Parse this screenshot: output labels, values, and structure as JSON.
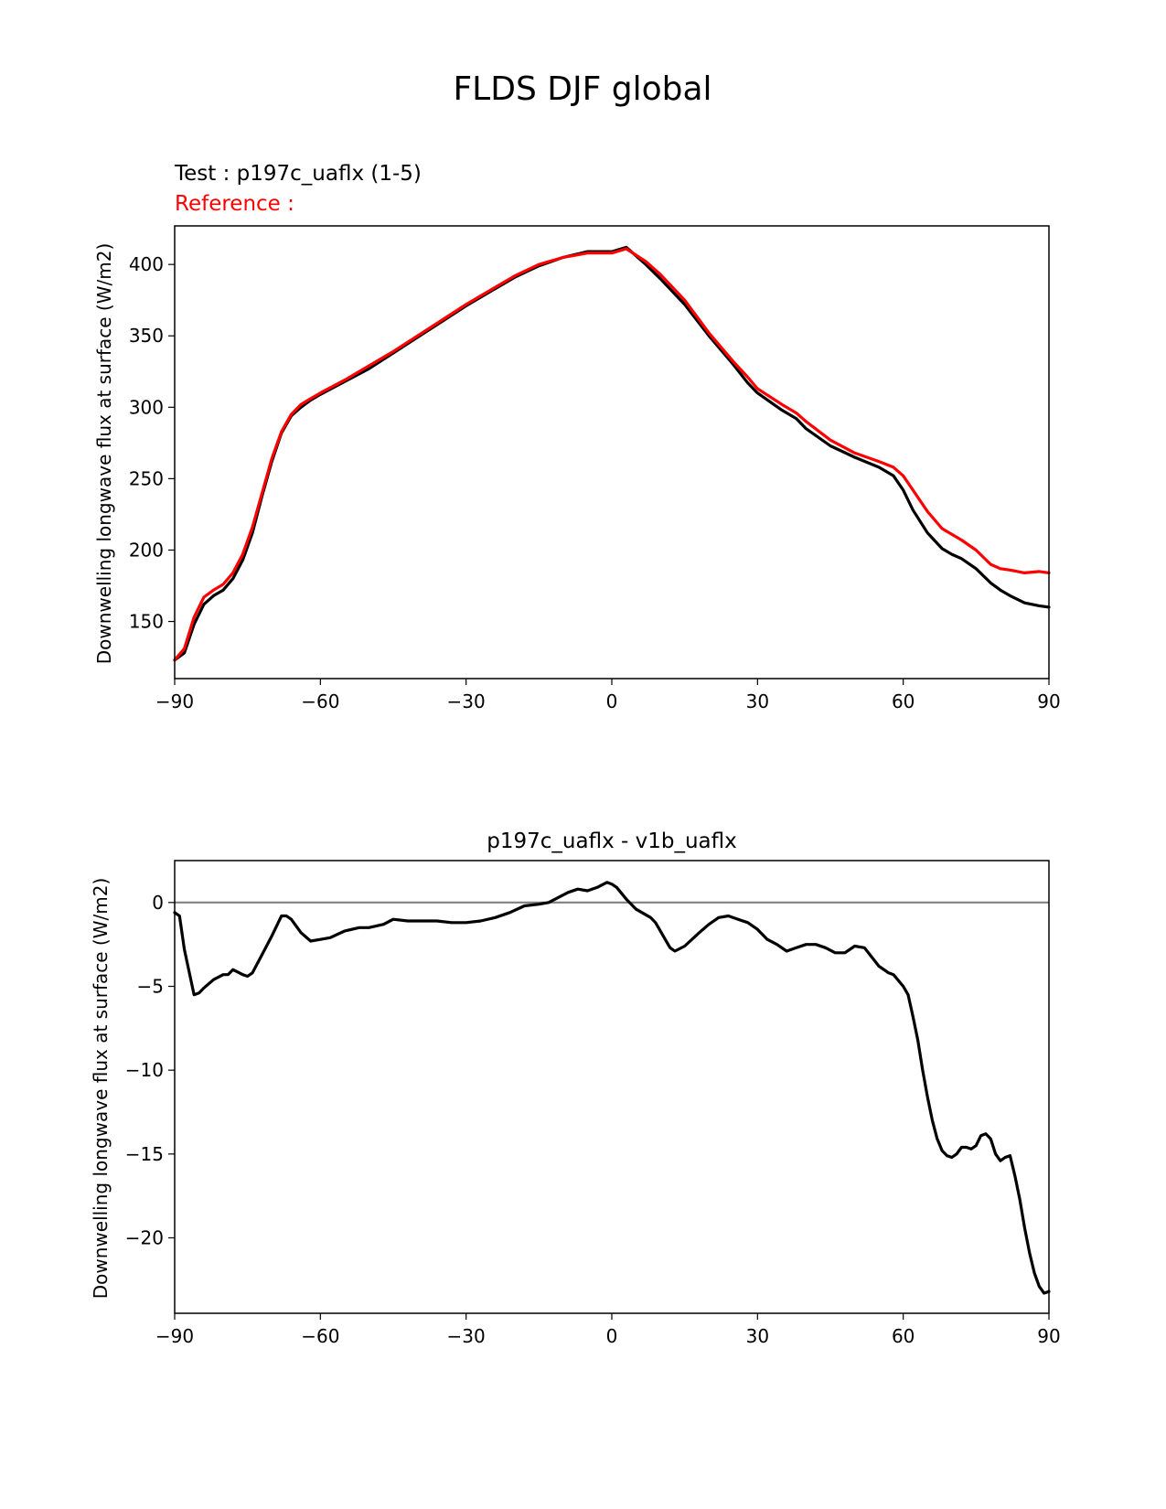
{
  "figure_title": "FLDS DJF global",
  "colors": {
    "test": "#000000",
    "reference": "#ff0000",
    "zero_line": "#808080",
    "axes": "#000000"
  },
  "chart_data": [
    {
      "type": "line",
      "panel": "top",
      "test_label": "Test : p197c_uaflx (1-5)",
      "reference_label": "Reference : ",
      "xlabel": "",
      "ylabel": "Downwelling longwave flux at surface (W/m2)",
      "xlim": [
        -90,
        90
      ],
      "ylim": [
        110,
        427
      ],
      "xticks": [
        -90,
        -60,
        -30,
        0,
        30,
        60,
        90
      ],
      "xtick_labels": [
        "−90",
        "−60",
        "−30",
        "0",
        "30",
        "60",
        "90"
      ],
      "yticks": [
        150,
        200,
        250,
        300,
        350,
        400
      ],
      "ytick_labels": [
        "150",
        "200",
        "250",
        "300",
        "350",
        "400"
      ],
      "x": [
        -90,
        -88,
        -86,
        -84,
        -82,
        -80,
        -78,
        -76,
        -74,
        -72,
        -70,
        -68,
        -66,
        -64,
        -62,
        -60,
        -55,
        -50,
        -45,
        -40,
        -35,
        -30,
        -25,
        -20,
        -15,
        -10,
        -5,
        0,
        3,
        7,
        10,
        15,
        20,
        25,
        28,
        30,
        35,
        38,
        40,
        45,
        50,
        55,
        58,
        60,
        62,
        65,
        68,
        70,
        72,
        75,
        78,
        80,
        82,
        85,
        88,
        90
      ],
      "series": [
        {
          "name": "test",
          "color": "#000000",
          "values": [
            123,
            128,
            148,
            162,
            168,
            172,
            180,
            193,
            212,
            238,
            262,
            282,
            294,
            300,
            305,
            309,
            318,
            327,
            338,
            349,
            360,
            371,
            381,
            391,
            399,
            405,
            409,
            409,
            412,
            400,
            390,
            372,
            350,
            330,
            317,
            310,
            298,
            292,
            285,
            273,
            265,
            258,
            252,
            242,
            228,
            212,
            201,
            197,
            194,
            187,
            177,
            172,
            168,
            163,
            161,
            160
          ]
        },
        {
          "name": "reference",
          "color": "#ff0000",
          "values": [
            123,
            131,
            153,
            167,
            172,
            176,
            184,
            197,
            216,
            240,
            264,
            283,
            295,
            302,
            306,
            310,
            319,
            329,
            339,
            350,
            361,
            372,
            382,
            392,
            400,
            405,
            408,
            408,
            411,
            402,
            393,
            375,
            352,
            332,
            321,
            313,
            302,
            296,
            290,
            277,
            268,
            262,
            258,
            252,
            242,
            227,
            215,
            211,
            207,
            200,
            190,
            187,
            186,
            184,
            185,
            184
          ]
        }
      ]
    },
    {
      "type": "line",
      "panel": "bottom",
      "title": "p197c_uaflx - v1b_uaflx",
      "xlabel": "",
      "ylabel": "Downwelling longwave flux at surface (W/m2)",
      "xlim": [
        -90,
        90
      ],
      "ylim": [
        -24.5,
        2.5
      ],
      "xticks": [
        -90,
        -60,
        -30,
        0,
        30,
        60,
        90
      ],
      "xtick_labels": [
        "−90",
        "−60",
        "−30",
        "0",
        "30",
        "60",
        "90"
      ],
      "yticks": [
        -20,
        -15,
        -10,
        -5,
        0
      ],
      "ytick_labels": [
        "−20",
        "−15",
        "−10",
        "−5",
        "0"
      ],
      "zero_line": 0,
      "x": [
        -90,
        -89,
        -88,
        -86,
        -85,
        -84,
        -82,
        -80,
        -79,
        -78,
        -76,
        -75,
        -74,
        -72,
        -70,
        -68,
        -67,
        -66,
        -64,
        -62,
        -60,
        -58,
        -55,
        -52,
        -50,
        -47,
        -45,
        -42,
        -39,
        -36,
        -33,
        -30,
        -27,
        -24,
        -21,
        -18,
        -15,
        -13,
        -11,
        -9,
        -7,
        -5,
        -3,
        -1,
        0,
        1,
        3,
        5,
        8,
        9,
        12,
        13,
        15,
        18,
        20,
        22,
        24,
        26,
        28,
        30,
        32,
        34,
        36,
        38,
        40,
        42,
        44,
        46,
        48,
        50,
        52,
        55,
        57,
        58,
        60,
        61,
        62,
        63,
        64,
        65,
        66,
        67,
        68,
        69,
        70,
        71,
        72,
        73,
        74,
        75,
        76,
        77,
        78,
        79,
        80,
        81,
        82,
        83,
        84,
        85,
        86,
        87,
        88,
        89,
        90
      ],
      "series": [
        {
          "name": "difference",
          "color": "#000000",
          "values": [
            -0.6,
            -0.8,
            -2.8,
            -5.5,
            -5.4,
            -5.1,
            -4.6,
            -4.3,
            -4.3,
            -4.0,
            -4.3,
            -4.4,
            -4.2,
            -3.1,
            -2.0,
            -0.8,
            -0.8,
            -1.0,
            -1.8,
            -2.3,
            -2.2,
            -2.1,
            -1.7,
            -1.5,
            -1.5,
            -1.3,
            -1.0,
            -1.1,
            -1.1,
            -1.1,
            -1.2,
            -1.2,
            -1.1,
            -0.9,
            -0.6,
            -0.2,
            -0.1,
            0.0,
            0.3,
            0.6,
            0.8,
            0.7,
            0.9,
            1.2,
            1.1,
            0.9,
            0.2,
            -0.4,
            -0.9,
            -1.2,
            -2.7,
            -2.9,
            -2.6,
            -1.8,
            -1.3,
            -0.9,
            -0.8,
            -1.0,
            -1.2,
            -1.6,
            -2.2,
            -2.5,
            -2.9,
            -2.7,
            -2.5,
            -2.5,
            -2.7,
            -3.0,
            -3.0,
            -2.6,
            -2.7,
            -3.8,
            -4.2,
            -4.3,
            -5.0,
            -5.5,
            -6.8,
            -8.2,
            -10.0,
            -11.6,
            -13.0,
            -14.1,
            -14.8,
            -15.1,
            -15.2,
            -15.0,
            -14.6,
            -14.6,
            -14.7,
            -14.5,
            -13.9,
            -13.8,
            -14.1,
            -15.0,
            -15.4,
            -15.2,
            -15.1,
            -16.3,
            -17.7,
            -19.4,
            -20.9,
            -22.1,
            -22.9,
            -23.3,
            -23.2
          ]
        }
      ]
    }
  ]
}
